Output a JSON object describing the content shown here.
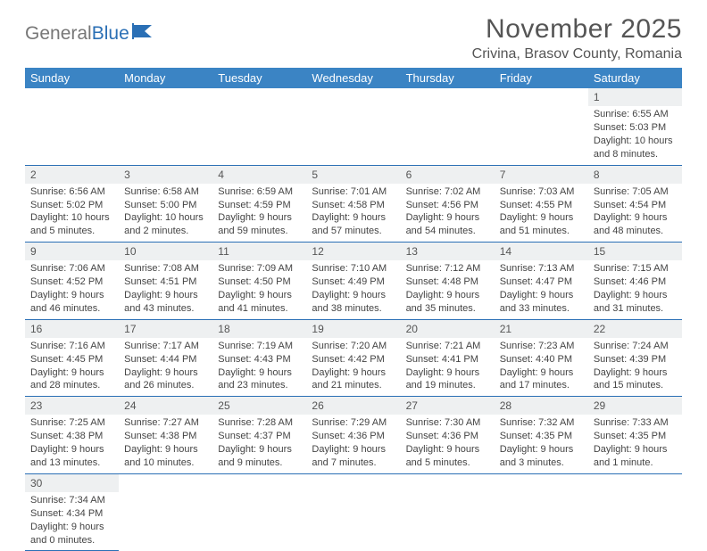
{
  "logo": {
    "part1": "General",
    "part2": "Blue"
  },
  "title": "November 2025",
  "location": "Crivina, Brasov County, Romania",
  "colors": {
    "header_bg": "#3b84c4",
    "border": "#2a6fb5",
    "daynum_bg": "#eef0f1",
    "text": "#444"
  },
  "weekdays": [
    "Sunday",
    "Monday",
    "Tuesday",
    "Wednesday",
    "Thursday",
    "Friday",
    "Saturday"
  ],
  "weeks": [
    {
      "nums": [
        "",
        "",
        "",
        "",
        "",
        "",
        "1"
      ],
      "info": [
        "",
        "",
        "",
        "",
        "",
        "",
        "Sunrise: 6:55 AM\nSunset: 5:03 PM\nDaylight: 10 hours and 8 minutes."
      ]
    },
    {
      "nums": [
        "2",
        "3",
        "4",
        "5",
        "6",
        "7",
        "8"
      ],
      "info": [
        "Sunrise: 6:56 AM\nSunset: 5:02 PM\nDaylight: 10 hours and 5 minutes.",
        "Sunrise: 6:58 AM\nSunset: 5:00 PM\nDaylight: 10 hours and 2 minutes.",
        "Sunrise: 6:59 AM\nSunset: 4:59 PM\nDaylight: 9 hours and 59 minutes.",
        "Sunrise: 7:01 AM\nSunset: 4:58 PM\nDaylight: 9 hours and 57 minutes.",
        "Sunrise: 7:02 AM\nSunset: 4:56 PM\nDaylight: 9 hours and 54 minutes.",
        "Sunrise: 7:03 AM\nSunset: 4:55 PM\nDaylight: 9 hours and 51 minutes.",
        "Sunrise: 7:05 AM\nSunset: 4:54 PM\nDaylight: 9 hours and 48 minutes."
      ]
    },
    {
      "nums": [
        "9",
        "10",
        "11",
        "12",
        "13",
        "14",
        "15"
      ],
      "info": [
        "Sunrise: 7:06 AM\nSunset: 4:52 PM\nDaylight: 9 hours and 46 minutes.",
        "Sunrise: 7:08 AM\nSunset: 4:51 PM\nDaylight: 9 hours and 43 minutes.",
        "Sunrise: 7:09 AM\nSunset: 4:50 PM\nDaylight: 9 hours and 41 minutes.",
        "Sunrise: 7:10 AM\nSunset: 4:49 PM\nDaylight: 9 hours and 38 minutes.",
        "Sunrise: 7:12 AM\nSunset: 4:48 PM\nDaylight: 9 hours and 35 minutes.",
        "Sunrise: 7:13 AM\nSunset: 4:47 PM\nDaylight: 9 hours and 33 minutes.",
        "Sunrise: 7:15 AM\nSunset: 4:46 PM\nDaylight: 9 hours and 31 minutes."
      ]
    },
    {
      "nums": [
        "16",
        "17",
        "18",
        "19",
        "20",
        "21",
        "22"
      ],
      "info": [
        "Sunrise: 7:16 AM\nSunset: 4:45 PM\nDaylight: 9 hours and 28 minutes.",
        "Sunrise: 7:17 AM\nSunset: 4:44 PM\nDaylight: 9 hours and 26 minutes.",
        "Sunrise: 7:19 AM\nSunset: 4:43 PM\nDaylight: 9 hours and 23 minutes.",
        "Sunrise: 7:20 AM\nSunset: 4:42 PM\nDaylight: 9 hours and 21 minutes.",
        "Sunrise: 7:21 AM\nSunset: 4:41 PM\nDaylight: 9 hours and 19 minutes.",
        "Sunrise: 7:23 AM\nSunset: 4:40 PM\nDaylight: 9 hours and 17 minutes.",
        "Sunrise: 7:24 AM\nSunset: 4:39 PM\nDaylight: 9 hours and 15 minutes."
      ]
    },
    {
      "nums": [
        "23",
        "24",
        "25",
        "26",
        "27",
        "28",
        "29"
      ],
      "info": [
        "Sunrise: 7:25 AM\nSunset: 4:38 PM\nDaylight: 9 hours and 13 minutes.",
        "Sunrise: 7:27 AM\nSunset: 4:38 PM\nDaylight: 9 hours and 10 minutes.",
        "Sunrise: 7:28 AM\nSunset: 4:37 PM\nDaylight: 9 hours and 9 minutes.",
        "Sunrise: 7:29 AM\nSunset: 4:36 PM\nDaylight: 9 hours and 7 minutes.",
        "Sunrise: 7:30 AM\nSunset: 4:36 PM\nDaylight: 9 hours and 5 minutes.",
        "Sunrise: 7:32 AM\nSunset: 4:35 PM\nDaylight: 9 hours and 3 minutes.",
        "Sunrise: 7:33 AM\nSunset: 4:35 PM\nDaylight: 9 hours and 1 minute."
      ]
    },
    {
      "nums": [
        "30",
        "",
        "",
        "",
        "",
        "",
        ""
      ],
      "info": [
        "Sunrise: 7:34 AM\nSunset: 4:34 PM\nDaylight: 9 hours and 0 minutes.",
        "",
        "",
        "",
        "",
        "",
        ""
      ]
    }
  ]
}
